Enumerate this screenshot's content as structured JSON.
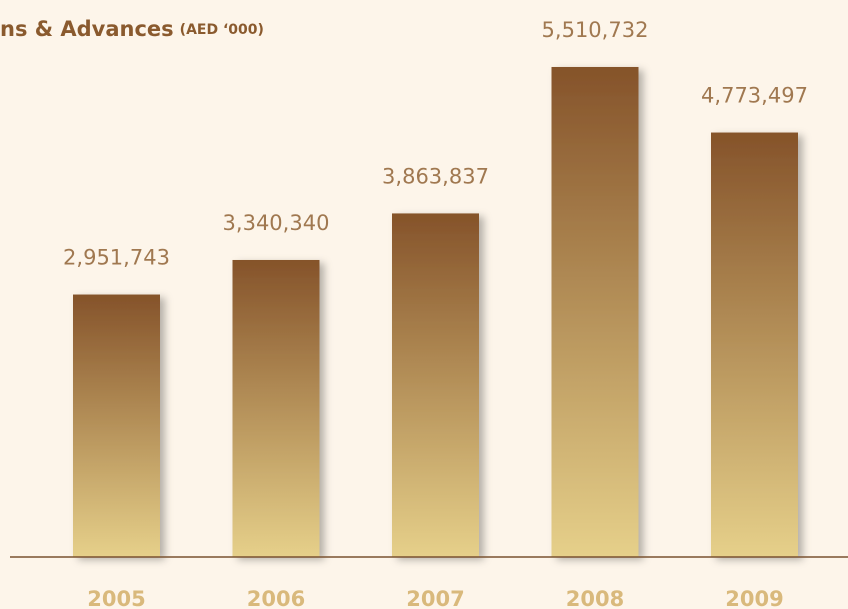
{
  "chart_data": {
    "type": "bar",
    "title": "ns & Advances",
    "subtitle": "(AED ‘000)",
    "categories": [
      "2005",
      "2006",
      "2007",
      "2008",
      "2009"
    ],
    "values": [
      2951743,
      3340340,
      3863837,
      5510732,
      4773497
    ],
    "value_labels": [
      "2,951,743",
      "3,340,340",
      "3,863,837",
      "5,510,732",
      "4,773,497"
    ],
    "color": "#85532a",
    "ylim": [
      0,
      6264000
    ]
  }
}
